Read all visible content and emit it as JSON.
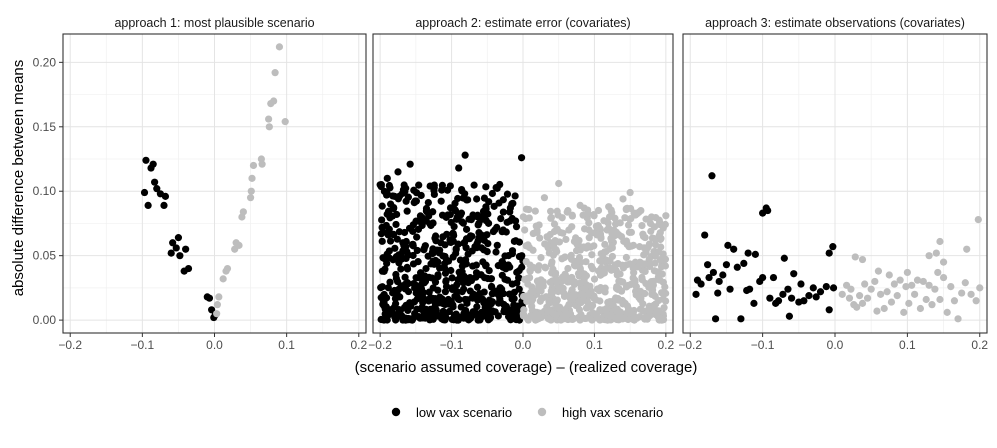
{
  "ylabel": "absolute difference between means",
  "xlabel": "(scenario assumed coverage) – (realized coverage)",
  "y_ticks": [
    "0.00",
    "0.05",
    "0.10",
    "0.15",
    "0.20"
  ],
  "x_ticks": [
    "−0.2",
    "−0.1",
    "0.0",
    "0.1",
    "0.2"
  ],
  "legend": [
    {
      "label": "low vax scenario",
      "color": "#000000"
    },
    {
      "label": "high vax scenario",
      "color": "#bdbdbd"
    }
  ],
  "chart_data": [
    {
      "type": "scatter",
      "title": "approach 1: most plausible scenario",
      "xlim": [
        -0.21,
        0.21
      ],
      "ylim": [
        -0.01,
        0.222
      ],
      "grid": true,
      "series": [
        {
          "name": "low vax scenario",
          "color": "#000000",
          "points": [
            [
              -0.095,
              0.124
            ],
            [
              -0.088,
              0.118
            ],
            [
              -0.085,
              0.121
            ],
            [
              -0.083,
              0.107
            ],
            [
              -0.08,
              0.102
            ],
            [
              -0.075,
              0.098
            ],
            [
              -0.068,
              0.096
            ],
            [
              -0.097,
              0.099
            ],
            [
              -0.092,
              0.089
            ],
            [
              -0.07,
              0.089
            ],
            [
              -0.058,
              0.06
            ],
            [
              -0.05,
              0.064
            ],
            [
              -0.053,
              0.056
            ],
            [
              -0.06,
              0.052
            ],
            [
              -0.048,
              0.05
            ],
            [
              -0.04,
              0.055
            ],
            [
              -0.042,
              0.038
            ],
            [
              -0.036,
              0.04
            ],
            [
              -0.01,
              0.018
            ],
            [
              -0.007,
              0.017
            ],
            [
              -0.004,
              0.008
            ],
            [
              -0.001,
              0.002
            ],
            [
              0.001,
              0.004
            ]
          ]
        },
        {
          "name": "high vax scenario",
          "color": "#bdbdbd",
          "points": [
            [
              0.003,
              0.005
            ],
            [
              0.004,
              0.012
            ],
            [
              0.006,
              0.018
            ],
            [
              0.012,
              0.032
            ],
            [
              0.016,
              0.038
            ],
            [
              0.018,
              0.04
            ],
            [
              0.028,
              0.055
            ],
            [
              0.03,
              0.06
            ],
            [
              0.034,
              0.058
            ],
            [
              0.038,
              0.08
            ],
            [
              0.04,
              0.084
            ],
            [
              0.05,
              0.095
            ],
            [
              0.051,
              0.1
            ],
            [
              0.052,
              0.11
            ],
            [
              0.054,
              0.12
            ],
            [
              0.065,
              0.125
            ],
            [
              0.066,
              0.121
            ],
            [
              0.075,
              0.156
            ],
            [
              0.076,
              0.15
            ],
            [
              0.078,
              0.168
            ],
            [
              0.082,
              0.17
            ],
            [
              0.084,
              0.192
            ],
            [
              0.09,
              0.212
            ],
            [
              0.098,
              0.154
            ]
          ]
        }
      ]
    },
    {
      "type": "scatter",
      "title": "approach 2: estimate error (covariates)",
      "xlim": [
        -0.21,
        0.21
      ],
      "ylim": [
        -0.01,
        0.222
      ],
      "grid": true,
      "series": [
        {
          "name": "low vax scenario",
          "color": "#000000",
          "x_range": [
            -0.2,
            0.0
          ],
          "y_max": 0.1285,
          "count": 620,
          "seed": 7,
          "points": [
            [
              -0.081,
              0.128
            ],
            [
              -0.002,
              0.126
            ],
            [
              -0.19,
              0.11
            ],
            [
              -0.158,
              0.121
            ],
            [
              -0.175,
              0.115
            ],
            [
              -0.09,
              0.118
            ],
            [
              -0.2,
              0.105
            ],
            [
              -0.13,
              0.104
            ]
          ]
        },
        {
          "name": "high vax scenario",
          "color": "#bdbdbd",
          "x_range": [
            0.0,
            0.2
          ],
          "y_max": 0.106,
          "count": 640,
          "seed": 13,
          "points": [
            [
              0.05,
              0.106
            ],
            [
              0.12,
              0.088
            ],
            [
              0.15,
              0.099
            ],
            [
              0.14,
              0.094
            ],
            [
              0.03,
              0.095
            ],
            [
              0.08,
              0.089
            ],
            [
              0.165,
              0.085
            ],
            [
              0.2,
              0.081
            ],
            [
              0.18,
              0.08
            ]
          ]
        }
      ]
    },
    {
      "type": "scatter",
      "title": "approach 3: estimate observations (covariates)",
      "xlim": [
        -0.21,
        0.21
      ],
      "ylim": [
        -0.01,
        0.222
      ],
      "grid": true,
      "series": [
        {
          "name": "low vax scenario",
          "color": "#000000",
          "points": [
            [
              -0.17,
              0.112
            ],
            [
              -0.095,
              0.087
            ],
            [
              -0.1,
              0.083
            ],
            [
              -0.093,
              0.085
            ],
            [
              -0.18,
              0.066
            ],
            [
              -0.148,
              0.058
            ],
            [
              -0.14,
              0.055
            ],
            [
              -0.12,
              0.052
            ],
            [
              -0.11,
              0.051
            ],
            [
              -0.003,
              0.057
            ],
            [
              -0.008,
              0.052
            ],
            [
              -0.19,
              0.031
            ],
            [
              -0.185,
              0.028
            ],
            [
              -0.176,
              0.043
            ],
            [
              -0.174,
              0.033
            ],
            [
              -0.168,
              0.037
            ],
            [
              -0.162,
              0.021
            ],
            [
              -0.192,
              0.02
            ],
            [
              -0.16,
              0.03
            ],
            [
              -0.155,
              0.035
            ],
            [
              -0.15,
              0.043
            ],
            [
              -0.145,
              0.024
            ],
            [
              -0.135,
              0.041
            ],
            [
              -0.126,
              0.044
            ],
            [
              -0.122,
              0.023
            ],
            [
              -0.118,
              0.024
            ],
            [
              -0.112,
              0.013
            ],
            [
              -0.104,
              0.03
            ],
            [
              -0.1,
              0.033
            ],
            [
              -0.09,
              0.017
            ],
            [
              -0.085,
              0.033
            ],
            [
              -0.082,
              0.013
            ],
            [
              -0.078,
              0.015
            ],
            [
              -0.072,
              0.02
            ],
            [
              -0.07,
              0.048
            ],
            [
              -0.065,
              0.024
            ],
            [
              -0.06,
              0.017
            ],
            [
              -0.057,
              0.036
            ],
            [
              -0.05,
              0.014
            ],
            [
              -0.047,
              0.028
            ],
            [
              -0.043,
              0.015
            ],
            [
              -0.036,
              0.019
            ],
            [
              -0.03,
              0.025
            ],
            [
              -0.026,
              0.018
            ],
            [
              -0.02,
              0.022
            ],
            [
              -0.012,
              0.026
            ],
            [
              -0.008,
              0.008
            ],
            [
              -0.002,
              0.025
            ],
            [
              -0.063,
              0.003
            ],
            [
              -0.165,
              0.001
            ],
            [
              -0.13,
              0.001
            ]
          ]
        },
        {
          "name": "high vax scenario",
          "color": "#bdbdbd",
          "points": [
            [
              0.198,
              0.078
            ],
            [
              0.145,
              0.061
            ],
            [
              0.182,
              0.055
            ],
            [
              0.13,
              0.05
            ],
            [
              0.14,
              0.052
            ],
            [
              0.028,
              0.049
            ],
            [
              0.038,
              0.047
            ],
            [
              0.15,
              0.045
            ],
            [
              0.06,
              0.038
            ],
            [
              0.075,
              0.035
            ],
            [
              0.1,
              0.037
            ],
            [
              0.142,
              0.037
            ],
            [
              0.01,
              0.02
            ],
            [
              0.016,
              0.027
            ],
            [
              0.02,
              0.017
            ],
            [
              0.022,
              0.024
            ],
            [
              0.026,
              0.012
            ],
            [
              0.03,
              0.01
            ],
            [
              0.034,
              0.019
            ],
            [
              0.038,
              0.013
            ],
            [
              0.041,
              0.028
            ],
            [
              0.045,
              0.017
            ],
            [
              0.05,
              0.024
            ],
            [
              0.055,
              0.03
            ],
            [
              0.058,
              0.007
            ],
            [
              0.063,
              0.02
            ],
            [
              0.068,
              0.009
            ],
            [
              0.072,
              0.022
            ],
            [
              0.078,
              0.014
            ],
            [
              0.082,
              0.028
            ],
            [
              0.086,
              0.019
            ],
            [
              0.09,
              0.031
            ],
            [
              0.095,
              0.006
            ],
            [
              0.098,
              0.026
            ],
            [
              0.102,
              0.013
            ],
            [
              0.106,
              0.027
            ],
            [
              0.11,
              0.02
            ],
            [
              0.114,
              0.031
            ],
            [
              0.118,
              0.009
            ],
            [
              0.122,
              0.03
            ],
            [
              0.126,
              0.016
            ],
            [
              0.13,
              0.027
            ],
            [
              0.134,
              0.012
            ],
            [
              0.138,
              0.024
            ],
            [
              0.145,
              0.016
            ],
            [
              0.15,
              0.033
            ],
            [
              0.155,
              0.006
            ],
            [
              0.16,
              0.026
            ],
            [
              0.165,
              0.015
            ],
            [
              0.17,
              0.001
            ],
            [
              0.175,
              0.021
            ],
            [
              0.18,
              0.029
            ],
            [
              0.188,
              0.02
            ],
            [
              0.195,
              0.015
            ],
            [
              0.2,
              0.025
            ]
          ]
        }
      ]
    }
  ]
}
